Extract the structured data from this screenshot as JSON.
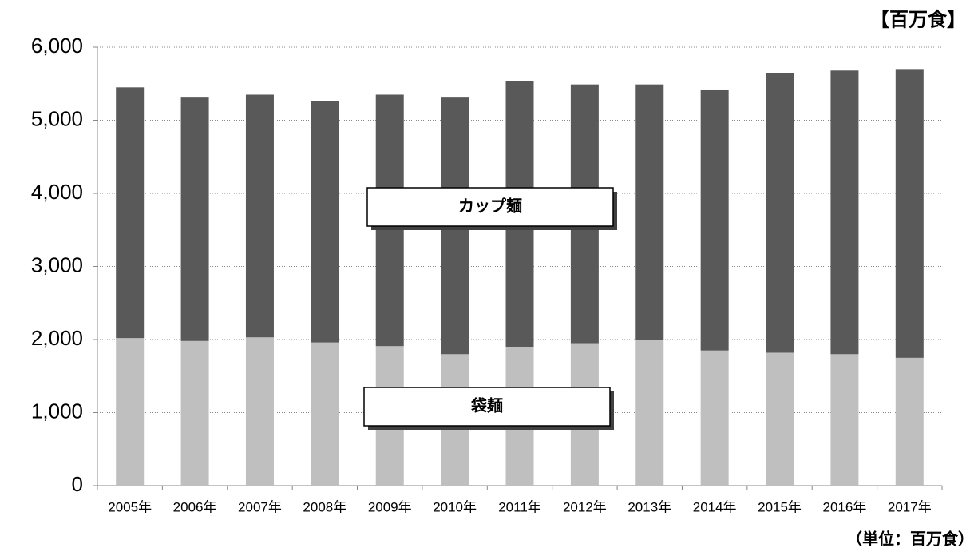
{
  "chart_data": {
    "type": "stacked-bar",
    "unit_label": "【百万食】",
    "note": "（単位：百万食）",
    "categories": [
      "2005年",
      "2006年",
      "2007年",
      "2008年",
      "2009年",
      "2010年",
      "2011年",
      "2012年",
      "2013年",
      "2014年",
      "2015年",
      "2016年",
      "2017年"
    ],
    "series": [
      {
        "name": "袋麺",
        "color": "#bfbfbf",
        "values": [
          2020,
          1980,
          2030,
          1960,
          1910,
          1800,
          1900,
          1950,
          1990,
          1850,
          1820,
          1800,
          1750
        ]
      },
      {
        "name": "カップ麺",
        "color": "#595959",
        "values": [
          3430,
          3330,
          3320,
          3300,
          3440,
          3510,
          3640,
          3540,
          3500,
          3560,
          3830,
          3880,
          3940
        ]
      }
    ],
    "ylim": [
      0,
      6000
    ],
    "yticks": [
      0,
      {
        "value": 1000,
        "label": "1,000"
      },
      {
        "value": 2000,
        "label": "2,000"
      },
      {
        "value": 3000,
        "label": "3,000"
      },
      {
        "value": 4000,
        "label": "4,000"
      },
      {
        "value": 5000,
        "label": "5,000"
      },
      {
        "value": 6000,
        "label": "6,000"
      }
    ],
    "grid": true
  }
}
